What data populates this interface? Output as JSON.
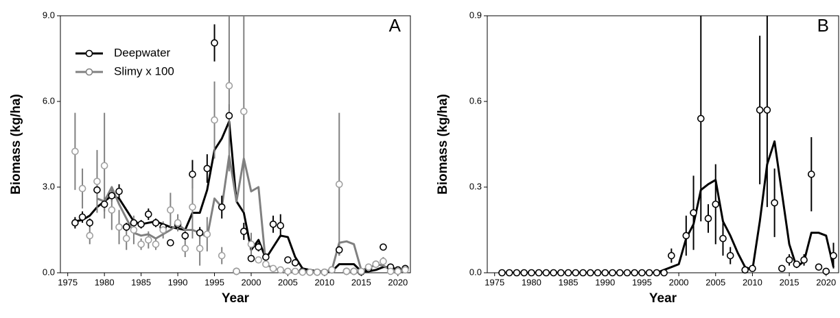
{
  "chart_data": [
    {
      "type": "scatter",
      "panel_label": "A",
      "x_label": "Year",
      "y_label": "Biomass (kg/ha)",
      "xlim": [
        1974,
        2021.7
      ],
      "ylim": [
        0,
        9
      ],
      "xticks": [
        1975,
        1980,
        1985,
        1990,
        1995,
        2000,
        2005,
        2010,
        2015,
        2020
      ],
      "yticks": [
        {
          "value": 0,
          "label": "0.0"
        },
        {
          "value": 3,
          "label": "3.0"
        },
        {
          "value": 6,
          "label": "6.0"
        },
        {
          "value": 9,
          "label": "9.0"
        }
      ],
      "legend": "upper left",
      "x": [
        1976,
        1977,
        1978,
        1979,
        1980,
        1981,
        1982,
        1983,
        1984,
        1985,
        1986,
        1987,
        1988,
        1989,
        1990,
        1991,
        1992,
        1993,
        1994,
        1995,
        1996,
        1997,
        1998,
        1999,
        2000,
        2001,
        2002,
        2003,
        2004,
        2005,
        2006,
        2007,
        2008,
        2009,
        2010,
        2011,
        2012,
        2013,
        2014,
        2015,
        2016,
        2017,
        2018,
        2019,
        2020,
        2021
      ],
      "series": [
        {
          "name": "Deepwater",
          "color": "#000000",
          "values": [
            1.75,
            1.95,
            1.75,
            2.9,
            2.4,
            2.7,
            2.85,
            1.6,
            1.75,
            1.7,
            2.05,
            1.75,
            1.6,
            1.05,
            1.7,
            1.3,
            3.45,
            1.4,
            3.65,
            8.05,
            2.3,
            5.5,
            0.05,
            1.45,
            0.5,
            0.9,
            0.55,
            1.7,
            1.65,
            0.45,
            0.35,
            0.05,
            0.02,
            0.02,
            0.02,
            0.1,
            0.8,
            0.05,
            0.05,
            0.03,
            0.15,
            0.3,
            0.9,
            0.2,
            0.1,
            0.15
          ],
          "errors": [
            0.2,
            0.2,
            0.15,
            0.25,
            0.25,
            0.2,
            0.25,
            0.15,
            0.15,
            0.15,
            0.2,
            0.15,
            0.15,
            0.1,
            0.15,
            0.15,
            0.5,
            0.2,
            0.5,
            0.65,
            0.4,
            0.4,
            0.05,
            0.3,
            0.1,
            0.15,
            0.1,
            0.3,
            0.4,
            0.1,
            0.1,
            0.02,
            0.02,
            0.02,
            0.02,
            0.05,
            0.2,
            0.02,
            0.02,
            0.02,
            0.05,
            0.1,
            0.1,
            0.05,
            0.05,
            0.05
          ],
          "fit": [
            1.8,
            1.85,
            2.0,
            2.3,
            2.5,
            2.7,
            2.6,
            2.2,
            1.8,
            1.7,
            1.75,
            1.8,
            1.7,
            1.6,
            1.55,
            1.5,
            2.1,
            2.1,
            2.9,
            4.3,
            4.7,
            5.3,
            2.5,
            2.1,
            0.8,
            1.15,
            0.5,
            0.9,
            1.3,
            1.25,
            0.55,
            0.15,
            0.1,
            0.05,
            0.05,
            0.05,
            0.3,
            0.3,
            0.3,
            0.05,
            0.05,
            0.1,
            0.2,
            0.2,
            0.1,
            0.05
          ]
        },
        {
          "name": "Slimy x 100",
          "color": "#808080",
          "values": [
            4.25,
            2.95,
            1.3,
            3.2,
            3.75,
            2.2,
            1.6,
            1.2,
            1.5,
            1.0,
            1.15,
            1.0,
            1.5,
            2.2,
            1.75,
            0.85,
            2.3,
            0.85,
            1.35,
            5.35,
            0.6,
            6.55,
            0.05,
            5.65,
            1.0,
            0.45,
            0.3,
            0.15,
            0.1,
            0.05,
            0.05,
            0.02,
            0.02,
            0.02,
            0.02,
            0.1,
            3.1,
            0.05,
            0.05,
            0.05,
            0.2,
            0.3,
            0.4,
            0.05,
            0.05,
            0.1
          ],
          "errors": [
            1.35,
            0.7,
            0.3,
            1.1,
            1.85,
            0.7,
            0.6,
            0.4,
            0.5,
            0.2,
            0.3,
            0.2,
            0.3,
            0.6,
            0.3,
            0.3,
            1.1,
            0.6,
            0.6,
            1.35,
            0.3,
            3.0,
            0.1,
            3.5,
            0.4,
            0.1,
            0.1,
            0.1,
            0.1,
            0.05,
            0.05,
            0.02,
            0.02,
            0.02,
            0.02,
            0.1,
            2.5,
            0.05,
            0.05,
            0.05,
            0.1,
            0.1,
            0.15,
            0.05,
            0.05,
            0.05
          ],
          "fit": [
            null,
            null,
            null,
            2.6,
            2.5,
            3.0,
            2.4,
            1.9,
            1.4,
            1.3,
            1.35,
            1.2,
            1.35,
            1.5,
            1.7,
            1.5,
            1.5,
            1.4,
            1.25,
            2.6,
            2.3,
            4.1,
            2.5,
            4.0,
            2.85,
            3.0,
            0.3,
            0.15,
            0.1,
            0.05,
            0.05,
            0.05,
            0.05,
            0.05,
            0.05,
            0.1,
            1.05,
            1.1,
            1.0,
            0.1,
            0.15,
            0.3,
            0.25,
            0.1,
            0.05,
            0.05
          ]
        }
      ]
    },
    {
      "type": "scatter",
      "panel_label": "B",
      "x_label": "Year",
      "y_label": "Biomass (kg/ha)",
      "xlim": [
        1974,
        2021.7
      ],
      "ylim": [
        0,
        0.9
      ],
      "xticks": [
        1975,
        1980,
        1985,
        1990,
        1995,
        2000,
        2005,
        2010,
        2015,
        2020
      ],
      "yticks": [
        {
          "value": 0,
          "label": "0.0"
        },
        0.3,
        0.6,
        0.9
      ],
      "x": [
        1976,
        1977,
        1978,
        1979,
        1980,
        1981,
        1982,
        1983,
        1984,
        1985,
        1986,
        1987,
        1988,
        1989,
        1990,
        1991,
        1992,
        1993,
        1994,
        1995,
        1996,
        1997,
        1998,
        1999,
        2000,
        2001,
        2002,
        2003,
        2004,
        2005,
        2006,
        2007,
        2008,
        2009,
        2010,
        2011,
        2012,
        2013,
        2014,
        2015,
        2016,
        2017,
        2018,
        2019,
        2020,
        2021
      ],
      "series": [
        {
          "color": "#000000",
          "values": [
            0,
            0,
            0,
            0,
            0,
            0,
            0,
            0,
            0,
            0,
            0,
            0,
            0,
            0,
            0,
            0,
            0,
            0,
            0,
            0,
            0,
            0,
            0,
            0.06,
            null,
            0.13,
            0.21,
            0.54,
            0.19,
            0.24,
            0.12,
            0.06,
            null,
            0.01,
            0.015,
            0.57,
            0.57,
            0.245,
            0.015,
            0.045,
            0.03,
            0.045,
            0.345,
            0.02,
            0.005,
            0.06
          ],
          "errors": [
            0,
            0,
            0,
            0,
            0,
            0,
            0,
            0,
            0,
            0,
            0,
            0,
            0,
            0,
            0,
            0,
            0,
            0,
            0,
            0,
            0,
            0,
            0,
            0.025,
            null,
            0.07,
            0.13,
            0.36,
            0.05,
            0.14,
            0.06,
            0.03,
            null,
            0.01,
            0.01,
            0.26,
            0.34,
            0.12,
            0.01,
            0.02,
            0.01,
            0.02,
            0.13,
            0.01,
            0.005,
            0.045
          ],
          "fit": [
            0,
            0,
            0,
            0,
            0,
            0,
            0,
            0,
            0,
            0,
            0,
            0,
            0,
            0,
            0,
            0,
            0,
            0,
            0,
            0,
            0,
            0,
            0.01,
            0.02,
            0.03,
            0.12,
            0.17,
            0.29,
            0.31,
            0.325,
            0.18,
            0.13,
            0.07,
            0.02,
            0.01,
            0.18,
            0.38,
            0.46,
            0.28,
            0.1,
            0.02,
            0.04,
            0.14,
            0.14,
            0.13,
            0.02
          ]
        }
      ]
    }
  ]
}
